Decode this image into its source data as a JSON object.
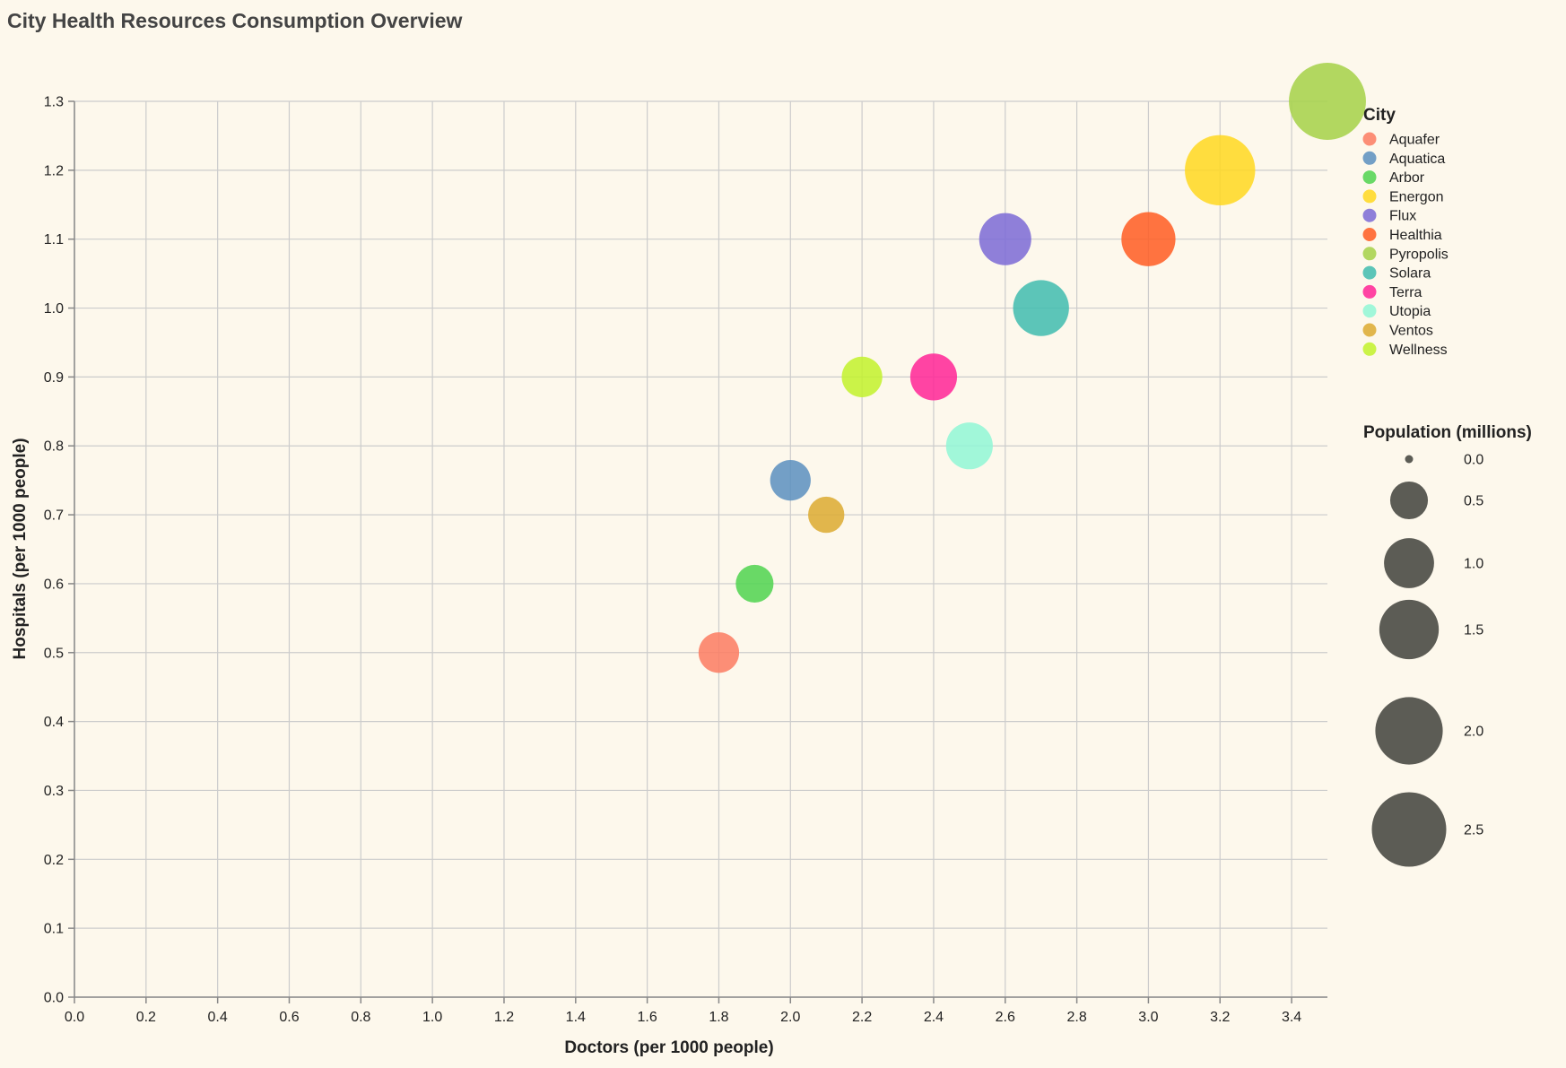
{
  "chart_data": {
    "type": "scatter",
    "title": "City Health Resources Consumption Overview",
    "xlabel": "Doctors (per 1000 people)",
    "ylabel": "Hospitals (per 1000 people)",
    "xlim": [
      0,
      3.5
    ],
    "ylim": [
      0,
      1.3
    ],
    "x_ticks": [
      "0.0",
      "0.2",
      "0.4",
      "0.6",
      "0.8",
      "1.0",
      "1.2",
      "1.4",
      "1.6",
      "1.8",
      "2.0",
      "2.2",
      "2.4",
      "2.6",
      "2.8",
      "3.0",
      "3.2",
      "3.4"
    ],
    "y_ticks": [
      "0.0",
      "0.1",
      "0.2",
      "0.3",
      "0.4",
      "0.5",
      "0.6",
      "0.7",
      "0.8",
      "0.9",
      "1.0",
      "1.1",
      "1.2",
      "1.3"
    ],
    "grid": true,
    "legend_position": "right",
    "color_legend_title": "City",
    "size_legend_title": "Population (millions)",
    "size_legend_values": [
      "0.0",
      "0.5",
      "1.0",
      "1.5",
      "2.0",
      "2.5"
    ],
    "points": [
      {
        "city": "Aquafer",
        "doctors": 1.8,
        "hospitals": 0.5,
        "population": 0.6,
        "color": "#fb7b62"
      },
      {
        "city": "Aquatica",
        "doctors": 2.0,
        "hospitals": 0.75,
        "population": 0.6,
        "color": "#5b8fbf"
      },
      {
        "city": "Arbor",
        "doctors": 1.9,
        "hospitals": 0.6,
        "population": 0.5,
        "color": "#4fd44f"
      },
      {
        "city": "Energon",
        "doctors": 3.2,
        "hospitals": 1.2,
        "population": 2.2,
        "color": "#ffd820"
      },
      {
        "city": "Flux",
        "doctors": 2.6,
        "hospitals": 1.1,
        "population": 1.1,
        "color": "#7b6ad6"
      },
      {
        "city": "Healthia",
        "doctors": 3.0,
        "hospitals": 1.1,
        "population": 1.2,
        "color": "#ff5c22"
      },
      {
        "city": "Pyropolis",
        "doctors": 3.5,
        "hospitals": 1.3,
        "population": 2.7,
        "color": "#a4d148"
      },
      {
        "city": "Solara",
        "doctors": 2.7,
        "hospitals": 1.0,
        "population": 1.3,
        "color": "#3fbcaf"
      },
      {
        "city": "Terra",
        "doctors": 2.4,
        "hospitals": 0.9,
        "population": 0.85,
        "color": "#ff2496"
      },
      {
        "city": "Utopia",
        "doctors": 2.5,
        "hospitals": 0.8,
        "population": 0.85,
        "color": "#90f7d6"
      },
      {
        "city": "Ventos",
        "doctors": 2.1,
        "hospitals": 0.7,
        "population": 0.45,
        "color": "#dcaa30"
      },
      {
        "city": "Wellness",
        "doctors": 2.2,
        "hospitals": 0.9,
        "population": 0.6,
        "color": "#c2f22c"
      }
    ]
  }
}
